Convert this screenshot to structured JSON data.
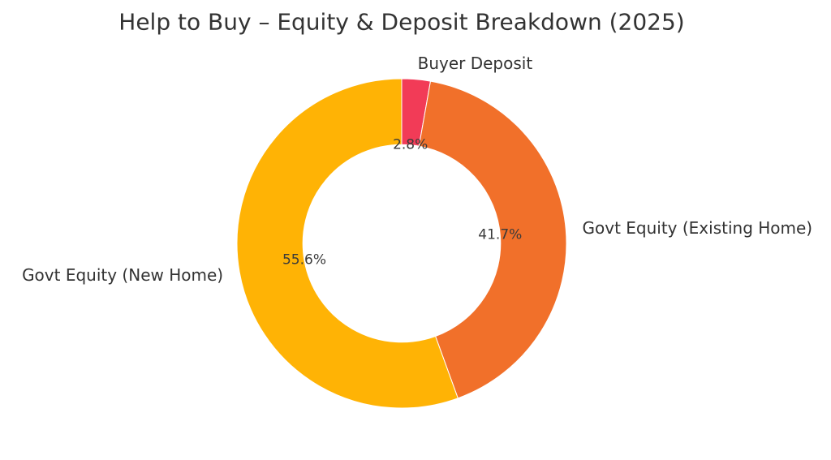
{
  "chart_data": {
    "type": "pie",
    "subtype": "donut",
    "title": "Help to Buy – Equity & Deposit Breakdown (2025)",
    "categories": [
      "Buyer Deposit",
      "Govt Equity (Existing Home)",
      "Govt Equity (New Home)"
    ],
    "values": [
      2.8,
      41.7,
      55.6
    ],
    "autopct_labels": [
      "2.8%",
      "41.7%",
      "55.6%"
    ],
    "colors": [
      "#F23B57",
      "#F1702A",
      "#FFB305"
    ],
    "start_angle_deg": 90,
    "direction": "clockwise",
    "donut_hole_ratio": 0.6,
    "label_distance_ratio": 1.1,
    "pct_distance_ratio": 0.6,
    "legend": "none",
    "background": "#FFFFFF",
    "text_color": "#333333"
  }
}
